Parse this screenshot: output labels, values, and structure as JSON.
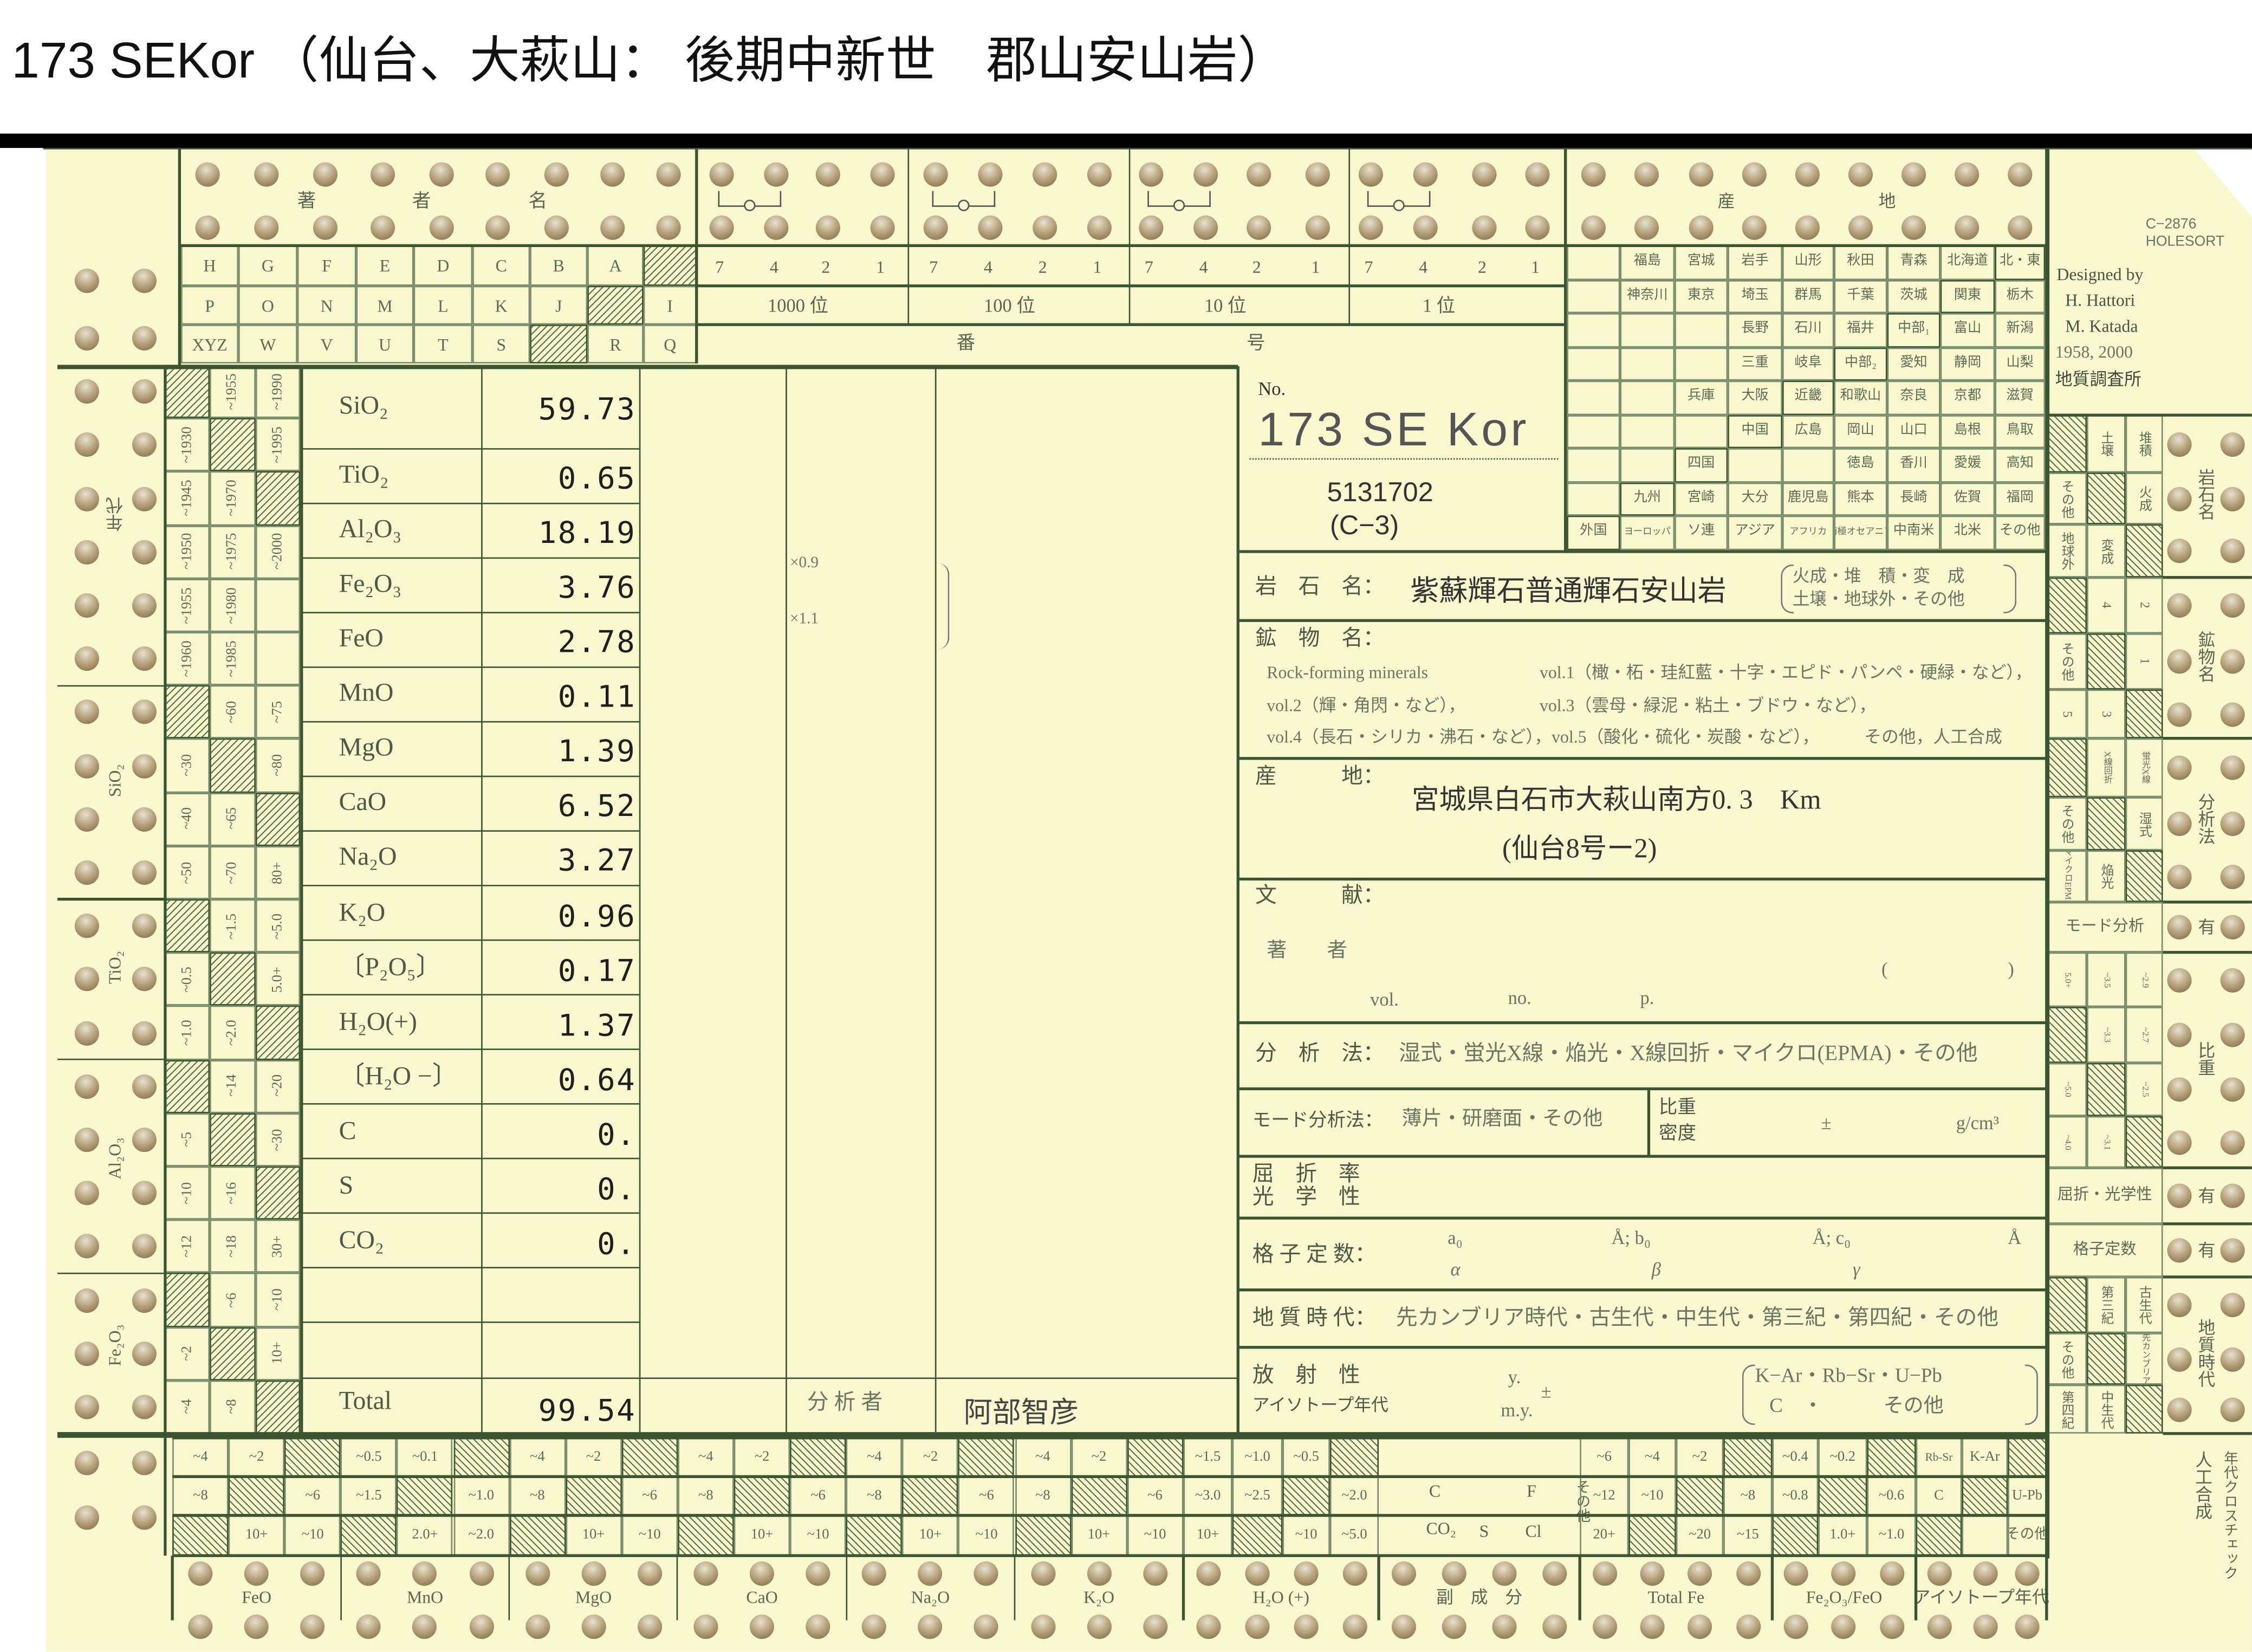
{
  "title": "173 SEKor （仙台、大萩山： 後期中新世　郡山安山岩）",
  "header_right": {
    "code": "C−2876",
    "brand": "HOLESORT",
    "designed_by": "Designed by",
    "designer_1": "H. Hattori",
    "designer_2": "M. Katada",
    "years": "1958, 2000",
    "org": "地質調査所"
  },
  "author_section": {
    "label": [
      "著",
      "者",
      "名"
    ],
    "rows": [
      [
        "H",
        "G",
        "F",
        "E",
        "D",
        "C",
        "B",
        "A",
        null
      ],
      [
        "P",
        "O",
        "N",
        "M",
        "L",
        "K",
        "J",
        null,
        "I"
      ],
      [
        "XYZ",
        "W",
        "V",
        "U",
        "T",
        "S",
        null,
        "R",
        "Q"
      ]
    ]
  },
  "number_section": {
    "digits": [
      "7",
      "4",
      "2",
      "1"
    ],
    "places": [
      "1000 位",
      "100 位",
      "10 位",
      "1 位"
    ],
    "label": [
      "番",
      "号"
    ]
  },
  "locality_header": [
    "産",
    "地"
  ],
  "prefectures": [
    [
      "",
      "福島",
      "宮城",
      "岩手",
      "山形",
      "秋田",
      "青森",
      "北海道",
      "北・東"
    ],
    [
      "",
      "神奈川",
      "東京",
      "埼玉",
      "群馬",
      "千葉",
      "茨城",
      "関東",
      "栃木"
    ],
    [
      "",
      "",
      "",
      "長野",
      "石川",
      "福井",
      "中部₁",
      "富山",
      "新潟"
    ],
    [
      "",
      "",
      "",
      "三重",
      "岐阜",
      "中部₂",
      "愛知",
      "静岡",
      "山梨"
    ],
    [
      "",
      "",
      "兵庫",
      "大阪",
      "近畿",
      "和歌山",
      "奈良",
      "京都",
      "滋賀"
    ],
    [
      "",
      "",
      "",
      "中国",
      "広島",
      "岡山",
      "山口",
      "島根",
      "鳥取"
    ],
    [
      "",
      "",
      "四国",
      "",
      "",
      "徳島",
      "香川",
      "愛媛",
      "高知"
    ],
    [
      "",
      "九州",
      "宮崎",
      "大分",
      "鹿児島",
      "熊本",
      "長崎",
      "佐賀",
      "福岡"
    ],
    [
      "外国",
      "ヨーロッパ",
      "ソ連",
      "アジア",
      "アフリカ",
      "南極オセアニア",
      "中南米",
      "北米",
      "その他"
    ]
  ],
  "sample": {
    "no_label": "No.",
    "number": "173 SE Kor",
    "code": "5131702",
    "sub_code": "(C−3)"
  },
  "chemistry": {
    "rows": [
      {
        "oxide": "SiO₂",
        "value": "59.73"
      },
      {
        "oxide": "TiO₂",
        "value": "0.65"
      },
      {
        "oxide": "Al₂O₃",
        "value": "18.19"
      },
      {
        "oxide": "Fe₂O₃",
        "value": "3.76"
      },
      {
        "oxide": "FeO",
        "value": "2.78"
      },
      {
        "oxide": "MnO",
        "value": "0.11"
      },
      {
        "oxide": "MgO",
        "value": "1.39"
      },
      {
        "oxide": "CaO",
        "value": "6.52"
      },
      {
        "oxide": "Na₂O",
        "value": "3.27"
      },
      {
        "oxide": "K₂O",
        "value": "0.96"
      },
      {
        "oxide": "〔P₂O₅〕",
        "value": "0.17"
      },
      {
        "oxide": "H₂O(+)",
        "value": "1.37"
      },
      {
        "oxide": "〔H₂O −〕",
        "value": "0.64"
      },
      {
        "oxide": "C",
        "value": "0."
      },
      {
        "oxide": "S",
        "value": "0."
      },
      {
        "oxide": "CO₂",
        "value": "0."
      },
      {
        "oxide": "",
        "value": ""
      },
      {
        "oxide": "",
        "value": ""
      }
    ],
    "total_label": "Total",
    "total_value": "99.54",
    "factor_1": "×0.9",
    "factor_2": "×1.1",
    "analyst_label": "分 析 者",
    "analyst": "阿部智彦"
  },
  "fields": {
    "rock_name": {
      "label": "岩　石　名：",
      "value": "紫蘇輝石普通輝石安山岩",
      "options_1": "火成・堆　積・変　成",
      "options_2": "土壌・地球外・その他"
    },
    "minerals": {
      "label": "鉱　物　名：",
      "line_1a": "Rock-forming minerals",
      "line_1b": "vol.1（橄・柘・珪紅藍・十字・エピド・パンペ・硬緑・など），",
      "line_2a": "vol.2（輝・角閃・など），",
      "line_2b": "vol.3（雲母・緑泥・粘土・ブドウ・など），",
      "line_3a": "vol.4（長石・シリカ・沸石・など），vol.5（酸化・硫化・炭酸・など），",
      "line_3b": "その他，人工合成"
    },
    "locality": {
      "label": "産　　　地：",
      "value_1": "宮城県白石市大萩山南方0. 3　Km",
      "value_2": "(仙台8号ー2)"
    },
    "literature": {
      "label": "文　　　献：",
      "author": "著　　者",
      "paren_open": "(",
      "paren_close": ")",
      "vol": "vol.",
      "no": "no.",
      "p": "p."
    },
    "analysis": {
      "label": "分　析　法：",
      "value": "湿式・蛍光X線・焔光・X線回折・マイクロ(EPMA)・その他"
    },
    "mode": {
      "label": "モード分析法：",
      "value": "薄片・研磨面・その他",
      "sg_1": "比重",
      "sg_2": "密度",
      "pm": "±",
      "unit": "g/cm³"
    },
    "refraction": {
      "label_1": "屈　折　率",
      "label_2": "光　学　性"
    },
    "lattice": {
      "label": "格 子 定 数：",
      "a0": "a₀",
      "b0": "Å; b₀",
      "c0": "Å; c₀",
      "ang": "Å",
      "alpha": "α",
      "beta": "β",
      "gamma": "γ"
    },
    "geologic_age": {
      "label": "地 質 時 代：",
      "value": "先カンブリア時代・古生代・中生代・第三紀・第四紀・その他"
    },
    "radioactivity": {
      "label_1": "放　射　性",
      "label_2": "アイソトープ年代",
      "y": "y.",
      "my": "m.y.",
      "pm": "±",
      "methods_1": "K−Ar・Rb−Sr・U−Pb",
      "methods_2": "C　・　　　その他"
    }
  },
  "left_scale": {
    "groups": [
      {
        "label": "年代",
        "rows": [
          [
            null,
            "~1955",
            "~1990"
          ],
          [
            "~1930",
            null,
            "~1995"
          ],
          [
            "~1945",
            "~1970",
            null
          ],
          [
            "~1950",
            "~1975",
            "~2000"
          ],
          [
            "~1955",
            "~1980",
            ""
          ],
          [
            "~1960",
            "~1985",
            ""
          ]
        ]
      },
      {
        "label": "SiO₂",
        "rows": [
          [
            null,
            "~60",
            "~75"
          ],
          [
            "~30",
            null,
            "~80"
          ],
          [
            "~40",
            "~65",
            null
          ],
          [
            "~50",
            "~70",
            "80+"
          ]
        ]
      },
      {
        "label": "TiO₂",
        "rows": [
          [
            null,
            "~1.5",
            "~5.0"
          ],
          [
            "~0.5",
            null,
            "5.0+"
          ],
          [
            "~1.0",
            "~2.0",
            null
          ]
        ]
      },
      {
        "label": "Al₂O₃",
        "rows": [
          [
            null,
            "~14",
            "~20"
          ],
          [
            "~5",
            null,
            "~30"
          ],
          [
            "~10",
            "~16",
            null
          ],
          [
            "~12",
            "~18",
            "30+"
          ]
        ]
      },
      {
        "label": "Fe₂O₃",
        "rows": [
          [
            null,
            "~6",
            "~10"
          ],
          [
            "~2",
            null,
            "10+"
          ],
          [
            "~4",
            "~8",
            null
          ]
        ]
      }
    ]
  },
  "right_scale": {
    "groups": [
      {
        "label": "岩石名",
        "rows": [
          [
            null,
            "土壌",
            "堆積"
          ],
          [
            "その他",
            null,
            "火成"
          ],
          [
            "地球外",
            "変成",
            null
          ]
        ]
      },
      {
        "label": "鉱物名",
        "rows": [
          [
            null,
            "4",
            "2"
          ],
          [
            "その他",
            null,
            "1"
          ],
          [
            "5",
            "3",
            null
          ]
        ]
      },
      {
        "label": "分析法",
        "rows": [
          [
            null,
            "X線回折",
            "蛍光X線"
          ],
          [
            "その他",
            null,
            "湿式"
          ],
          [
            "マイクロEPMA",
            "焔光",
            null
          ]
        ]
      },
      {
        "label": "有",
        "rows": [
          "モード分析"
        ]
      },
      {
        "label": "比重",
        "rows": [
          [
            "5.0+",
            "~3.5",
            "~2.9"
          ],
          [
            null,
            "~3.3",
            "~2.7"
          ],
          [
            "~5.0",
            null,
            "~2.5"
          ],
          [
            "~4.0",
            "~3.1",
            null
          ]
        ]
      },
      {
        "label": "有",
        "rows": [
          "屈折・光学性"
        ]
      },
      {
        "label": "有",
        "rows": [
          "格子定数"
        ]
      },
      {
        "label": "地質時代",
        "rows": [
          [
            null,
            "第三紀",
            "古生代"
          ],
          [
            "その他",
            null,
            "先カンブリア"
          ],
          [
            "第四紀",
            "中生代",
            null
          ]
        ]
      }
    ],
    "bottom_label_1": "人工合成",
    "bottom_label_2": "年代クロスチェック"
  },
  "bottom_scale": {
    "groups": [
      {
        "label": "FeO",
        "rows": [
          [
            "~4",
            "~2",
            null
          ],
          [
            "~8",
            null,
            "~6"
          ],
          [
            null,
            "10+",
            "~10"
          ]
        ]
      },
      {
        "label": "MnO",
        "rows": [
          [
            "~0.5",
            "~0.1",
            null
          ],
          [
            "~1.5",
            null,
            "~1.0"
          ],
          [
            null,
            "2.0+",
            "~2.0"
          ]
        ]
      },
      {
        "label": "MgO",
        "rows": [
          [
            "~4",
            "~2",
            null
          ],
          [
            "~8",
            null,
            "~6"
          ],
          [
            null,
            "10+",
            "~10"
          ]
        ]
      },
      {
        "label": "CaO",
        "rows": [
          [
            "~4",
            "~2",
            null
          ],
          [
            "~8",
            null,
            "~6"
          ],
          [
            null,
            "10+",
            "~10"
          ]
        ]
      },
      {
        "label": "Na₂O",
        "rows": [
          [
            "~4",
            "~2",
            null
          ],
          [
            "~8",
            null,
            "~6"
          ],
          [
            null,
            "10+",
            "~10"
          ]
        ]
      },
      {
        "label": "K₂O",
        "rows": [
          [
            "~4",
            "~2",
            null
          ],
          [
            "~8",
            null,
            "~6"
          ],
          [
            null,
            "10+",
            "~10"
          ]
        ]
      },
      {
        "label": "H₂O (+)",
        "rows": [
          [
            "~1.5",
            "~1.0",
            "~0.5",
            null
          ],
          [
            "~3.0",
            "~2.5",
            null,
            "~2.0"
          ],
          [
            "10+",
            null,
            "~10",
            "~5.0"
          ]
        ]
      },
      {
        "label": "副　成　分",
        "items": [
          "C",
          "F",
          "その他",
          "CO₂",
          "S",
          "Cl"
        ]
      },
      {
        "label": "Total Fe",
        "rows": [
          [
            "~6",
            "~4",
            "~2",
            null
          ],
          [
            "~12",
            "~10",
            null,
            "~8"
          ],
          [
            "20+",
            null,
            "~20",
            "~15"
          ]
        ]
      },
      {
        "label": "Fe₂O₃/FeO",
        "rows": [
          [
            "~0.4",
            "~0.2",
            null
          ],
          [
            "~0.8",
            null,
            "~0.6"
          ],
          [
            null,
            "1.0+",
            "~1.0"
          ]
        ]
      },
      {
        "label": "アイソトープ年代",
        "rows": [
          [
            "Rb-Sr",
            "K-Ar",
            null
          ],
          [
            "C",
            null,
            "U-Pb"
          ],
          [
            null,
            "",
            "その他"
          ]
        ]
      }
    ]
  },
  "colors": {
    "card": "#f8f7cd",
    "rule": "#3b5530",
    "print": "#5a6650",
    "title_bar": "#000000"
  }
}
